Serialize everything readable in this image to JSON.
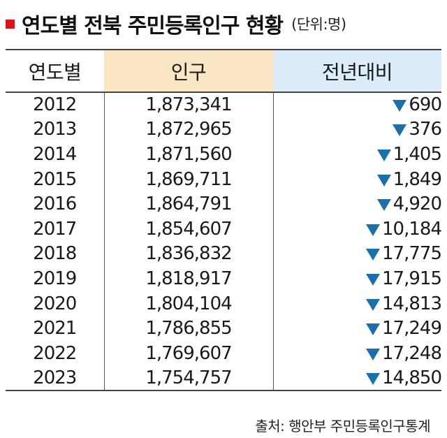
{
  "title": "연도별 전북 주민등록인구 현황",
  "unit_note": "(단위:명)",
  "source": "출처: 행안부 주민등록인구통계",
  "colors": {
    "accent_square": "#d7141c",
    "population_header_bg": "#fbe6c4",
    "change_header_bg": "#dcecf8",
    "decrease_marker": "#1c6fa8"
  },
  "change_icon": "down-triangle-icon",
  "chart_data": {
    "type": "table",
    "columns": [
      "연도별",
      "인구",
      "전년대비"
    ],
    "rows": [
      {
        "year": "2012",
        "population": "1,873,341",
        "change": "690"
      },
      {
        "year": "2013",
        "population": "1,872,965",
        "change": "376"
      },
      {
        "year": "2014",
        "population": "1,871,560",
        "change": "1,405"
      },
      {
        "year": "2015",
        "population": "1,869,711",
        "change": "1,849"
      },
      {
        "year": "2016",
        "population": "1,864,791",
        "change": "4,920"
      },
      {
        "year": "2017",
        "population": "1,854,607",
        "change": "10,184"
      },
      {
        "year": "2018",
        "population": "1,836,832",
        "change": "17,775"
      },
      {
        "year": "2019",
        "population": "1,818,917",
        "change": "17,915"
      },
      {
        "year": "2020",
        "population": "1,804,104",
        "change": "14,813"
      },
      {
        "year": "2021",
        "population": "1,786,855",
        "change": "17,249"
      },
      {
        "year": "2022",
        "population": "1,769,607",
        "change": "17,248"
      },
      {
        "year": "2023",
        "population": "1,754,757",
        "change": "14,850"
      }
    ]
  }
}
